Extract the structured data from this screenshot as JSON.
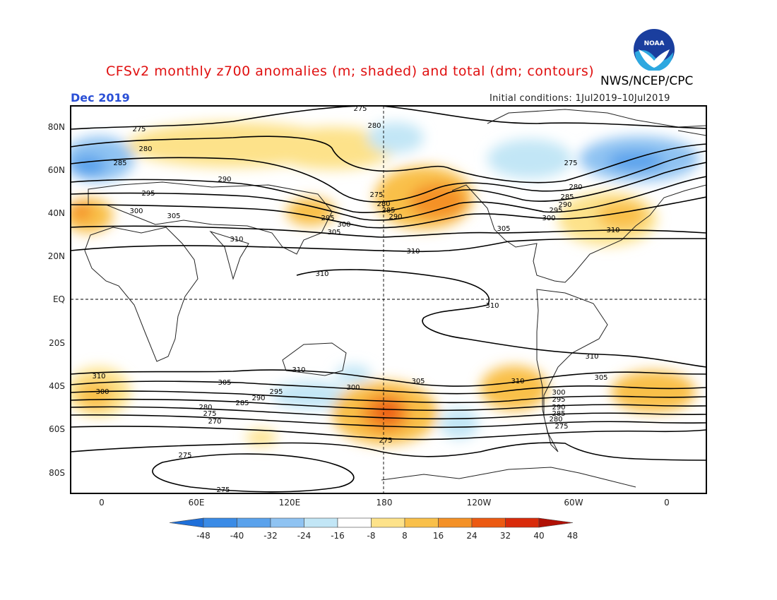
{
  "header": {
    "title": "CFSv2 monthly z700 anomalies (m; shaded) and total (dm; contours)",
    "agency": "NWS/NCEP/CPC",
    "month": "Dec 2019",
    "initial_conditions": "Initial conditions: 1Jul2019–10Jul2019",
    "logo_text": "NOAA"
  },
  "map": {
    "lat_labels": [
      "80N",
      "60N",
      "40N",
      "20N",
      "EQ",
      "20S",
      "40S",
      "60S",
      "80S"
    ],
    "lon_labels": [
      "0",
      "60E",
      "120E",
      "180",
      "120W",
      "60W",
      "0"
    ],
    "contour_labels": [
      "275",
      "280",
      "285",
      "290",
      "295",
      "300",
      "305",
      "310"
    ]
  },
  "colorbar": {
    "labels": [
      "-48",
      "-40",
      "-32",
      "-24",
      "-16",
      "-8",
      "8",
      "16",
      "24",
      "32",
      "40",
      "48"
    ],
    "colors": [
      "#1e6fd9",
      "#3a8be6",
      "#5aa2ec",
      "#8fc3f2",
      "#c2e6f6",
      "#ffffff",
      "#fde28a",
      "#f9c04a",
      "#f49126",
      "#ec5a12",
      "#d92b0b",
      "#b01005"
    ]
  }
}
